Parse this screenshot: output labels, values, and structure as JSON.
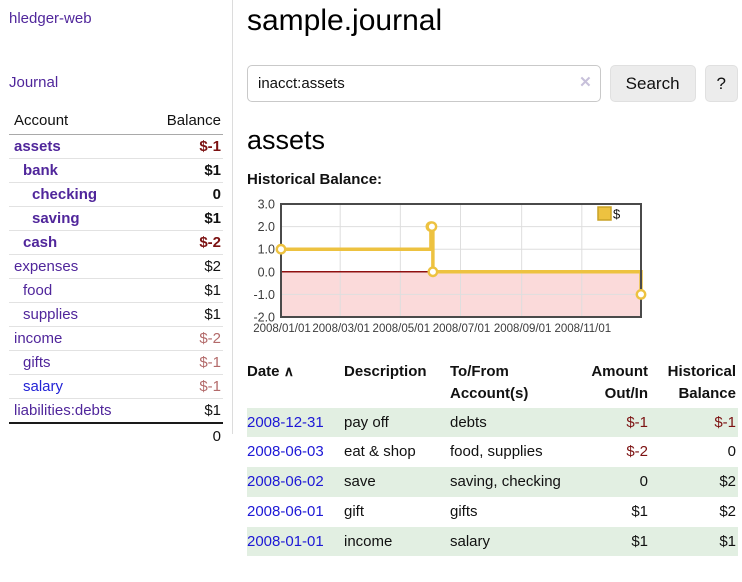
{
  "sidebar": {
    "app_title": "hledger-web",
    "journal_label": "Journal",
    "accounts_table": {
      "account_header": "Account",
      "balance_header": "Balance",
      "rows": [
        {
          "name": "assets",
          "balance": "$-1",
          "level": 1,
          "bold": true,
          "neg": "strong"
        },
        {
          "name": "bank",
          "balance": "$1",
          "level": 2,
          "bold": true,
          "neg": "none"
        },
        {
          "name": "checking",
          "balance": "0",
          "level": 3,
          "bold": true,
          "neg": "none"
        },
        {
          "name": "saving",
          "balance": "$1",
          "level": 3,
          "bold": true,
          "neg": "none"
        },
        {
          "name": "cash",
          "balance": "$-2",
          "level": 2,
          "bold": true,
          "neg": "strong"
        },
        {
          "name": "expenses",
          "balance": "$2",
          "level": 1,
          "bold": false,
          "neg": "none"
        },
        {
          "name": "food",
          "balance": "$1",
          "level": 2,
          "bold": false,
          "neg": "none"
        },
        {
          "name": "supplies",
          "balance": "$1",
          "level": 2,
          "bold": false,
          "neg": "none"
        },
        {
          "name": "income",
          "balance": "$-2",
          "level": 1,
          "bold": false,
          "neg": "muted"
        },
        {
          "name": "gifts",
          "balance": "$-1",
          "level": 2,
          "bold": false,
          "neg": "muted"
        },
        {
          "name": "salary",
          "balance": "$-1",
          "level": 2,
          "bold": false,
          "neg": "muted",
          "blue": true
        },
        {
          "name": "liabilities:debts",
          "balance": "$1",
          "level": 1,
          "bold": false,
          "neg": "none"
        }
      ],
      "total": "0"
    }
  },
  "main": {
    "page_title": "sample.journal",
    "search": {
      "value": "inacct:assets",
      "clear_icon": "✕",
      "button_label": "Search",
      "help_label": "?"
    },
    "account_heading": "assets",
    "chart_heading": "Historical Balance:"
  },
  "chart_data": {
    "type": "line",
    "step": true,
    "title": "Historical Balance:",
    "x_range_days": 365,
    "ylim": [
      -2,
      3
    ],
    "y_ticks": [
      3.0,
      2.0,
      1.0,
      0.0,
      -1.0,
      -2.0
    ],
    "x_ticks": [
      {
        "label": "2008/01/01",
        "day": 0
      },
      {
        "label": "2008/03/01",
        "day": 60
      },
      {
        "label": "2008/05/01",
        "day": 121
      },
      {
        "label": "2008/07/01",
        "day": 182
      },
      {
        "label": "2008/09/01",
        "day": 244
      },
      {
        "label": "2008/11/01",
        "day": 305
      }
    ],
    "series": [
      {
        "name": "$",
        "color": "#edc240",
        "points": [
          {
            "date": "2008-01-01",
            "day": 0,
            "value": 1
          },
          {
            "date": "2008-06-01",
            "day": 152,
            "value": 2
          },
          {
            "date": "2008-06-02",
            "day": 153,
            "value": 2
          },
          {
            "date": "2008-06-03",
            "day": 154,
            "value": 0
          },
          {
            "date": "2008-12-31",
            "day": 365,
            "value": -1
          }
        ]
      }
    ],
    "legend": {
      "label": "$",
      "swatch_color": "#edc240",
      "swatch_border": "#c9a227"
    },
    "colors": {
      "negative_fill": "#fbdada",
      "zero_line": "#8f1010",
      "grid": "#dedede",
      "frame": "#4a4a4a",
      "tick_text": "#3c3c3c"
    }
  },
  "register_table": {
    "headers": {
      "date": "Date",
      "sort_caret": "∧",
      "description": "Description",
      "accounts": "To/From Account(s)",
      "amount": "Amount Out/In",
      "balance": "Historical Balance"
    },
    "rows": [
      {
        "date": "2008-12-31",
        "description": "pay off",
        "accounts": "debts",
        "amount": "$-1",
        "balance": "$-1"
      },
      {
        "date": "2008-06-03",
        "description": "eat & shop",
        "accounts": "food, supplies",
        "amount": "$-2",
        "balance": "0"
      },
      {
        "date": "2008-06-02",
        "description": "save",
        "accounts": "saving, checking",
        "amount": "0",
        "balance": "$2"
      },
      {
        "date": "2008-06-01",
        "description": "gift",
        "accounts": "gifts",
        "amount": "$1",
        "balance": "$2"
      },
      {
        "date": "2008-01-01",
        "description": "income",
        "accounts": "salary",
        "amount": "$1",
        "balance": "$1"
      }
    ]
  }
}
